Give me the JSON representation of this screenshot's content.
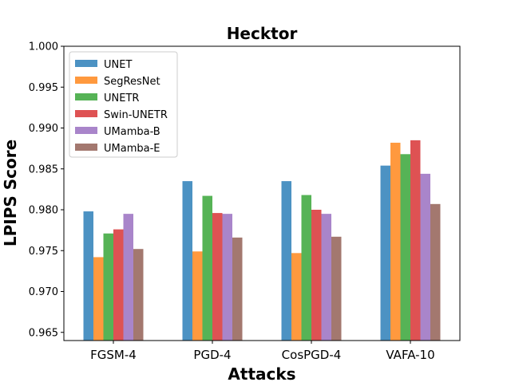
{
  "chart_data": {
    "type": "bar",
    "title": "Hecktor",
    "xlabel": "Attacks",
    "ylabel": "LPIPS Score",
    "categories": [
      "FGSM-4",
      "PGD-4",
      "CosPGD-4",
      "VAFA-10"
    ],
    "ylim": [
      0.964,
      1.0
    ],
    "yticks": [
      "0.965",
      "0.970",
      "0.975",
      "0.980",
      "0.985",
      "0.990",
      "0.995",
      "1.000"
    ],
    "legend_position": "top-left",
    "grid": false,
    "series": [
      {
        "name": "UNET",
        "color": "#1f77b4",
        "values": [
          0.9798,
          0.9835,
          0.9835,
          0.9854
        ]
      },
      {
        "name": "SegResNet",
        "color": "#ff7f0e",
        "values": [
          0.9742,
          0.9749,
          0.9747,
          0.9882
        ]
      },
      {
        "name": "UNETR",
        "color": "#2ca02c",
        "values": [
          0.9771,
          0.9817,
          0.9818,
          0.9868
        ]
      },
      {
        "name": "Swin-UNETR",
        "color": "#d62728",
        "values": [
          0.9776,
          0.9796,
          0.98,
          0.9885
        ]
      },
      {
        "name": "UMamba-B",
        "color": "#9467bd",
        "values": [
          0.9795,
          0.9795,
          0.9795,
          0.9844
        ]
      },
      {
        "name": "UMamba-E",
        "color": "#8c564b",
        "values": [
          0.9752,
          0.9766,
          0.9767,
          0.9807
        ]
      }
    ]
  }
}
